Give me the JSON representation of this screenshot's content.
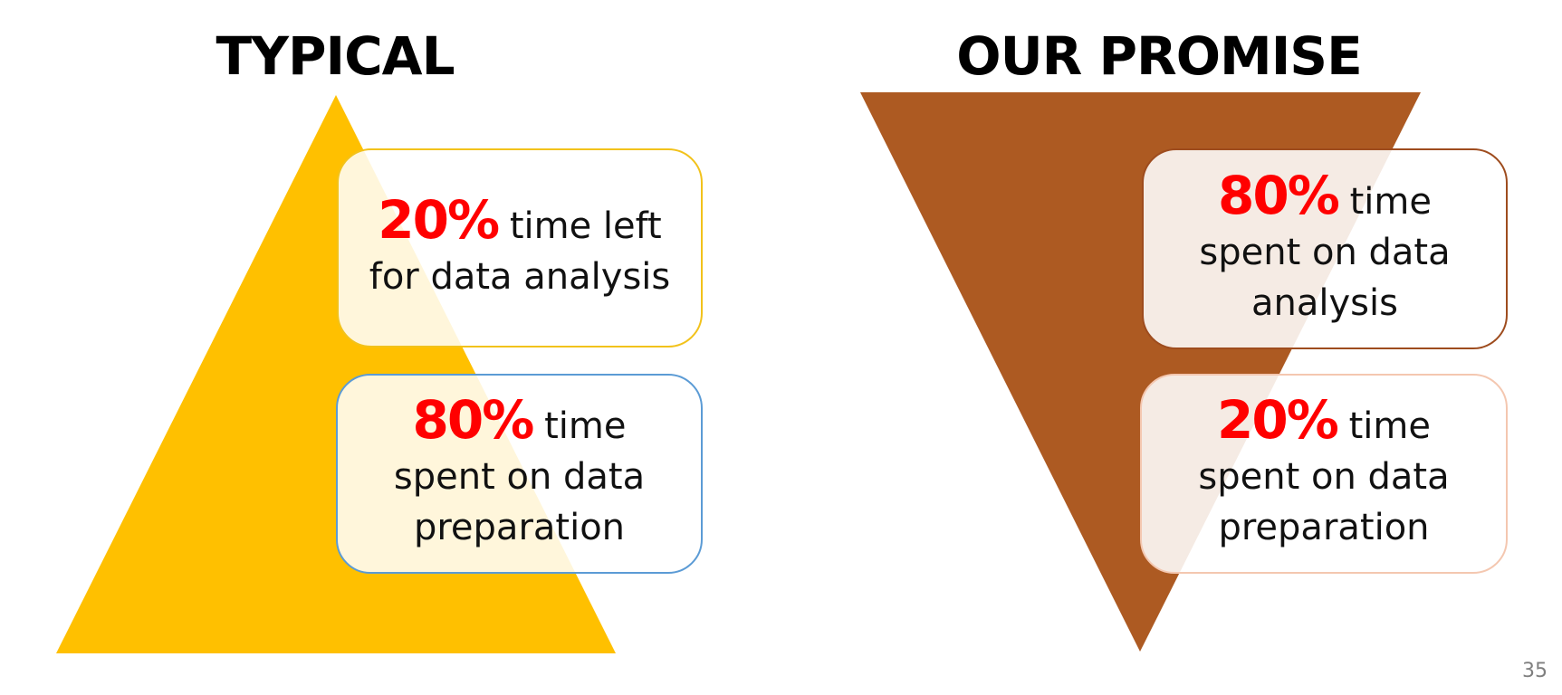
{
  "colors": {
    "typical_triangle": "#FFC000",
    "promise_triangle": "#AD5A22",
    "box_border_yellow": "#F2C21B",
    "box_border_blue": "#5B9BD5",
    "box_border_brown": "#9E4C1E",
    "box_border_peach": "#F4C7B0",
    "percent_red": "#FF0000",
    "page_number_gray": "#7F7F7F"
  },
  "left": {
    "title": "TYPICAL",
    "boxes": [
      {
        "percent": "20%",
        "line1_rest": " time left",
        "lines": [
          "for data analysis"
        ]
      },
      {
        "percent": "80%",
        "line1_rest": " time",
        "lines": [
          "spent on data",
          "preparation"
        ]
      }
    ]
  },
  "right": {
    "title": "OUR PROMISE",
    "boxes": [
      {
        "percent": "80%",
        "line1_rest": " time",
        "lines": [
          "spent on data",
          "analysis"
        ]
      },
      {
        "percent": "20%",
        "line1_rest": " time",
        "lines": [
          "spent on data",
          "preparation"
        ]
      }
    ]
  },
  "page_number": "35"
}
